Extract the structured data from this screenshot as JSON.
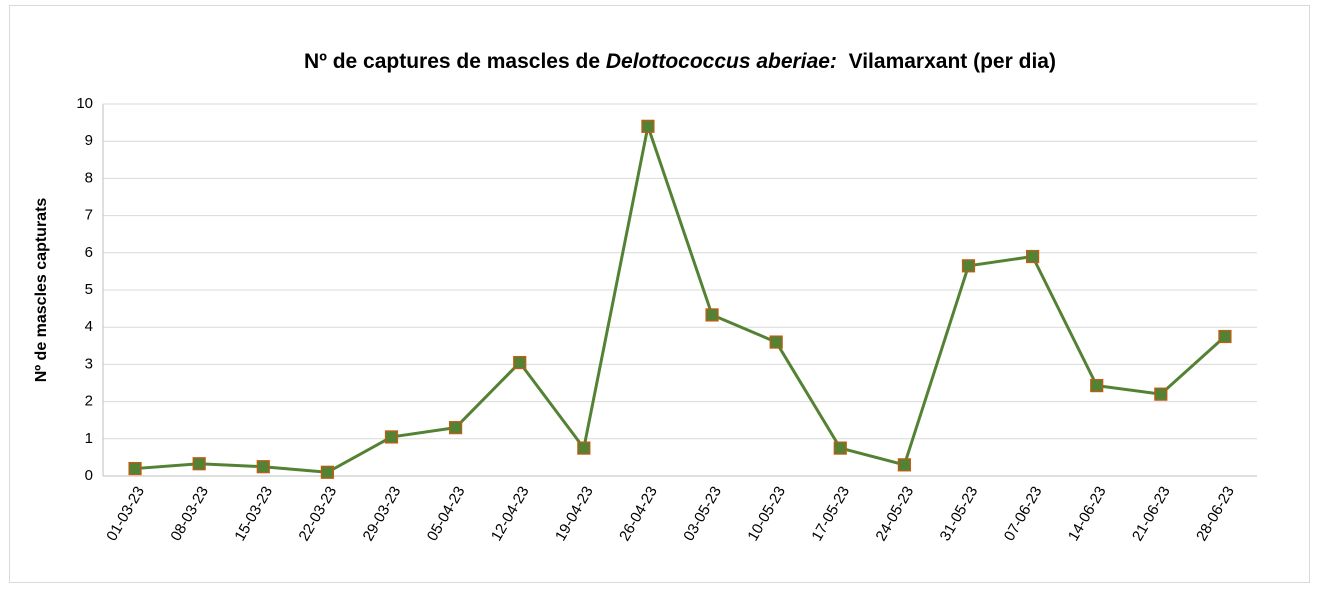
{
  "chart_data": {
    "type": "line",
    "title": [
      {
        "text": "Nº de captures de mascles de ",
        "italic": false
      },
      {
        "text": "Delottococcus aberiae:",
        "italic": true
      },
      {
        "text": "  Vilamarxant (per dia)",
        "italic": false
      }
    ],
    "y_label": "Nº de mascles capturats",
    "categories": [
      "01-03-23",
      "08-03-23",
      "15-03-23",
      "22-03-23",
      "29-03-23",
      "05-04-23",
      "12-04-23",
      "19-04-23",
      "26-04-23",
      "03-05-23",
      "10-05-23",
      "17-05-23",
      "24-05-23",
      "31-05-23",
      "07-06-23",
      "14-06-23",
      "21-06-23",
      "28-06-23"
    ],
    "series": [
      {
        "color": "#548235",
        "marker_edge": "#c55a11",
        "values": [
          0.2,
          0.33,
          0.25,
          0.1,
          1.05,
          1.3,
          3.05,
          0.75,
          9.4,
          4.33,
          3.6,
          0.75,
          0.3,
          5.65,
          5.9,
          2.43,
          2.2,
          3.75
        ]
      }
    ],
    "ylim": [
      0,
      10
    ],
    "yticks": [
      0,
      1,
      2,
      3,
      4,
      5,
      6,
      7,
      8,
      9,
      10
    ],
    "grid": true
  }
}
